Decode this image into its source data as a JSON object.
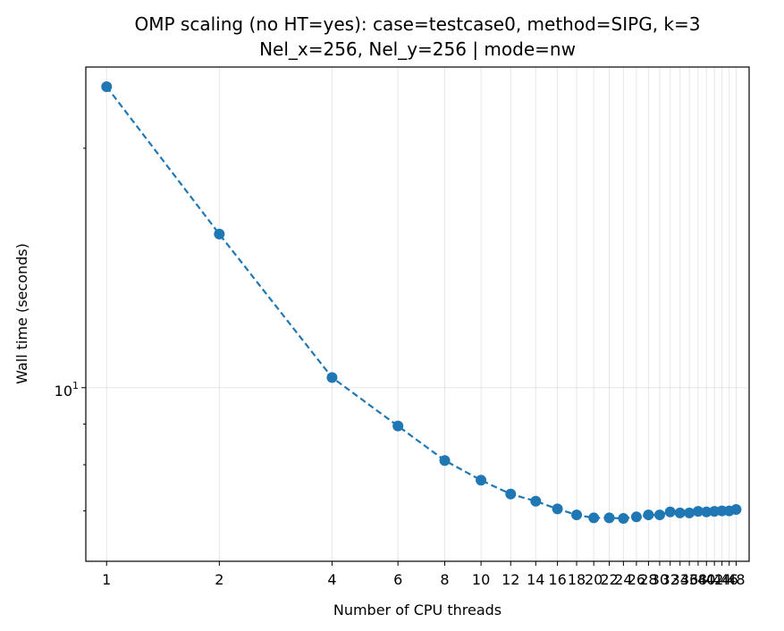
{
  "chart_data": {
    "type": "line",
    "title": "OMP scaling (no HT=yes): case=testcase0, method=SIPG, k=3",
    "subtitle": "Nel_x=256, Nel_y=256  |  mode=nw",
    "xlabel": "Number of CPU threads",
    "ylabel": "Wall time (seconds)",
    "x_scale": "log",
    "y_scale": "log",
    "xlim": [
      0.88,
      52
    ],
    "ylim": [
      6.05,
      25.3
    ],
    "grid": true,
    "legend": "none",
    "x_ticks": [
      1,
      2,
      4,
      6,
      8,
      10,
      12,
      14,
      16,
      18,
      20,
      22,
      24,
      26,
      28,
      30,
      32,
      34,
      36,
      38,
      40,
      42,
      44,
      46,
      48
    ],
    "x_tick_labels": [
      "1",
      "2",
      "4",
      "6",
      "8",
      "10",
      "12",
      "14",
      "16",
      "18",
      "20",
      "22",
      "24",
      "26",
      "28",
      "30",
      "32",
      "34",
      "36",
      "38",
      "40",
      "42",
      "44",
      "46",
      "48"
    ],
    "y_tick_label_base": "10",
    "y_tick_label_exp": "1",
    "y_major_ticks": [
      10
    ],
    "y_minor_ticks": [
      7,
      8,
      9,
      20
    ],
    "series": [
      {
        "color": "#1f77b4",
        "linestyle": "dashed",
        "marker": "circle",
        "points": [
          {
            "x": 1,
            "y": 23.9
          },
          {
            "x": 2,
            "y": 15.6
          },
          {
            "x": 4,
            "y": 10.3
          },
          {
            "x": 6,
            "y": 8.95
          },
          {
            "x": 8,
            "y": 8.1
          },
          {
            "x": 10,
            "y": 7.65
          },
          {
            "x": 12,
            "y": 7.35
          },
          {
            "x": 14,
            "y": 7.2
          },
          {
            "x": 16,
            "y": 7.04
          },
          {
            "x": 18,
            "y": 6.92
          },
          {
            "x": 20,
            "y": 6.86
          },
          {
            "x": 22,
            "y": 6.86
          },
          {
            "x": 24,
            "y": 6.85
          },
          {
            "x": 26,
            "y": 6.88
          },
          {
            "x": 28,
            "y": 6.92
          },
          {
            "x": 30,
            "y": 6.92
          },
          {
            "x": 32,
            "y": 6.98
          },
          {
            "x": 34,
            "y": 6.96
          },
          {
            "x": 36,
            "y": 6.96
          },
          {
            "x": 38,
            "y": 6.99
          },
          {
            "x": 40,
            "y": 6.98
          },
          {
            "x": 42,
            "y": 6.99
          },
          {
            "x": 44,
            "y": 7.0
          },
          {
            "x": 46,
            "y": 7.0
          },
          {
            "x": 48,
            "y": 7.03
          }
        ]
      }
    ]
  }
}
